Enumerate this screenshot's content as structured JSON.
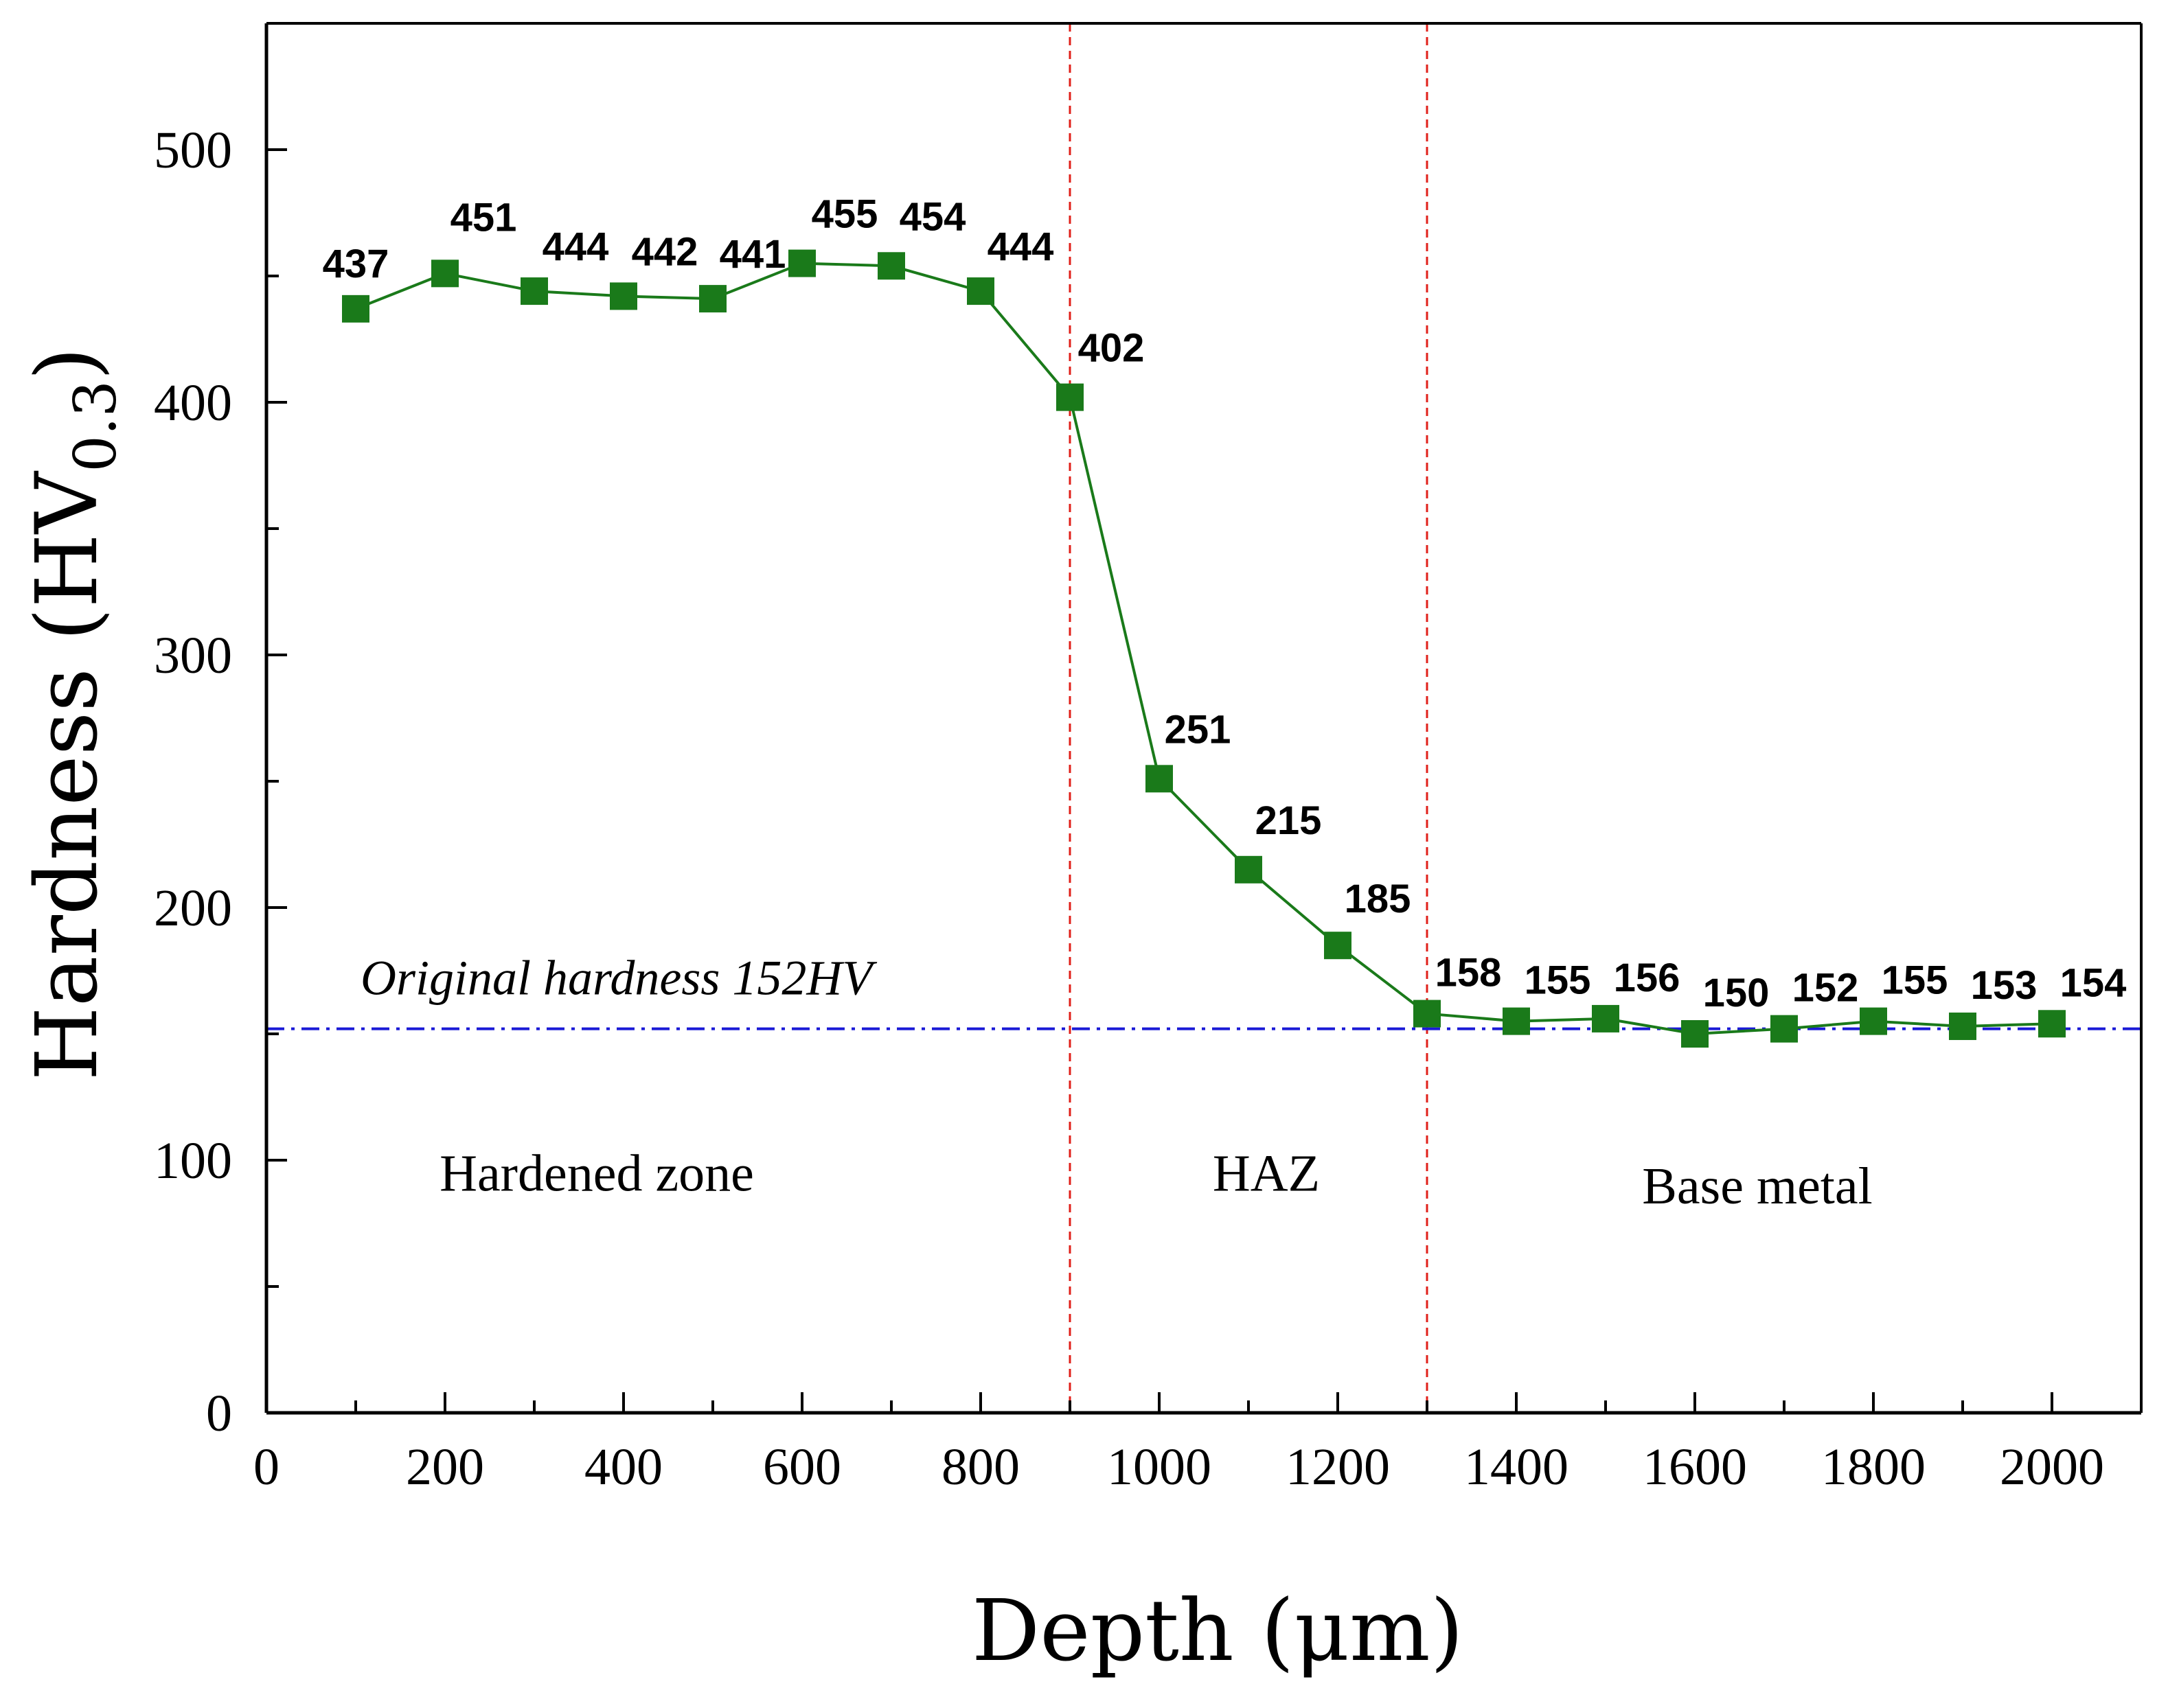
{
  "chart_data": {
    "type": "line",
    "xlabel": "Depth (μm)",
    "ylabel": "Hardness (HV",
    "ylabel_subscript": "0.3",
    "ylabel_close": ")",
    "xlim": [
      0,
      2100
    ],
    "ylim": [
      0,
      550
    ],
    "x_ticks": [
      "0",
      "200",
      "400",
      "600",
      "800",
      "1000",
      "1200",
      "1400",
      "1600",
      "1800",
      "2000"
    ],
    "y_ticks": [
      "0",
      "100",
      "200",
      "300",
      "400",
      "500"
    ],
    "series": [
      {
        "name": "Hardness",
        "color": "#1a7a1a",
        "marker": "square",
        "x": [
          100,
          200,
          300,
          400,
          500,
          600,
          700,
          800,
          900,
          1000,
          1100,
          1200,
          1300,
          1400,
          1500,
          1600,
          1700,
          1800,
          1900,
          2000
        ],
        "values": [
          437,
          451,
          444,
          442,
          441,
          455,
          454,
          444,
          402,
          251,
          215,
          185,
          158,
          155,
          156,
          150,
          152,
          155,
          153,
          154
        ],
        "labels": [
          "437",
          "451",
          "444",
          "442",
          "441",
          "455",
          "454",
          "444",
          "402",
          "251",
          "215",
          "185",
          "158",
          "155",
          "156",
          "150",
          "152",
          "155",
          "153",
          "154"
        ]
      }
    ],
    "reference_line": {
      "value": 152,
      "label": "Original hardness 152HV",
      "color": "#1a1ad6"
    },
    "zone_boundaries": {
      "values": [
        900,
        1300
      ],
      "color": "#e0201a"
    },
    "zones": [
      {
        "label": "Hardened zone",
        "x_center": 370,
        "y": 95
      },
      {
        "label": "HAZ",
        "x_center": 1120,
        "y": 95
      },
      {
        "label": "Base metal",
        "x_center": 1670,
        "y": 90
      }
    ]
  }
}
